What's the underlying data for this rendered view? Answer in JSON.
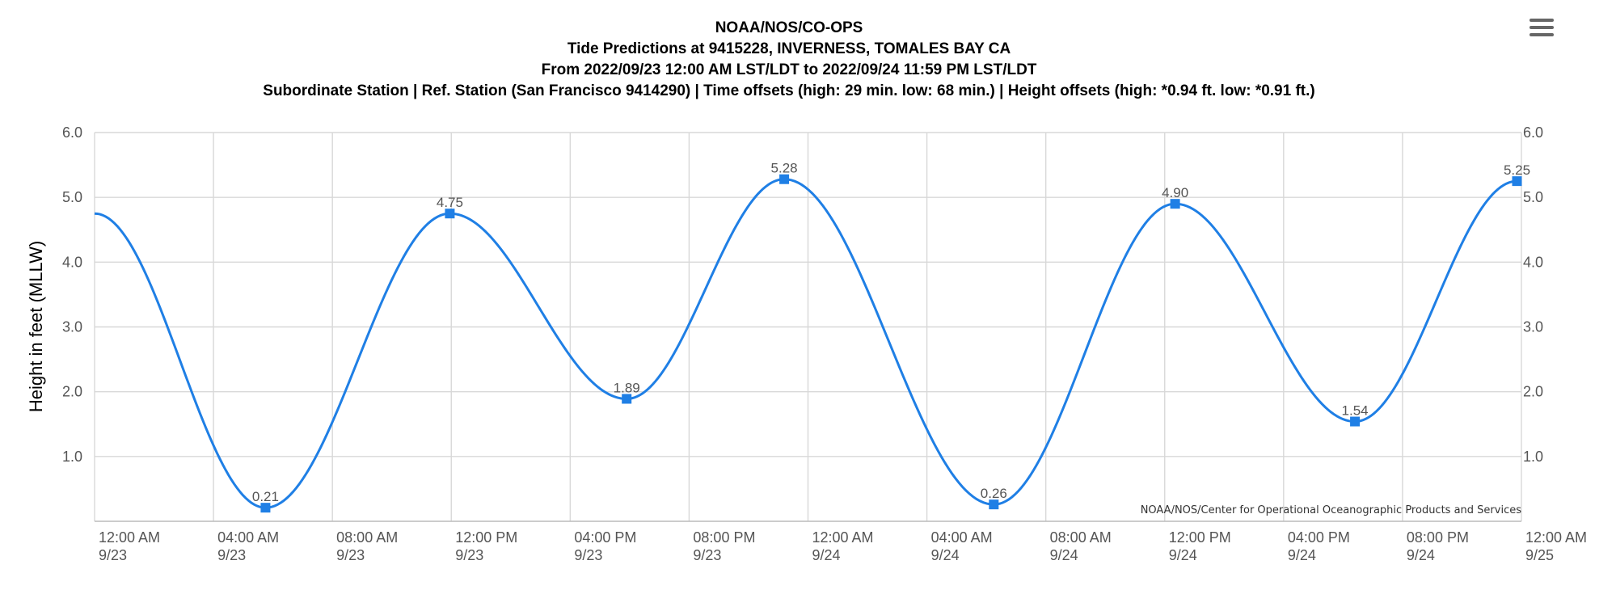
{
  "chart_data": {
    "type": "line",
    "title": [
      "NOAA/NOS/CO-OPS",
      "Tide Predictions at 9415228, INVERNESS, TOMALES BAY CA",
      "From 2022/09/23 12:00 AM LST/LDT to 2022/09/24 11:59 PM LST/LDT",
      "Subordinate Station | Ref. Station (San Francisco 9414290) | Time offsets (high: 29 min. low: 68 min.) | Height offsets (high: *0.94 ft. low: *0.91 ft.)"
    ],
    "ylabel": "Height in feet (MLLW)",
    "xlabel": "",
    "credit": "NOAA/NOS/Center for Operational Oceanographic Products and Services",
    "ylim": [
      0,
      6
    ],
    "xlim_hours": [
      0,
      48
    ],
    "y_ticks": [
      "6.0",
      "5.0",
      "4.0",
      "3.0",
      "2.0",
      "1.0"
    ],
    "y_tick_values": [
      6,
      5,
      4,
      3,
      2,
      1
    ],
    "x_ticks": [
      {
        "hours": 0,
        "time": "12:00 AM",
        "date": "9/23"
      },
      {
        "hours": 4,
        "time": "04:00 AM",
        "date": "9/23"
      },
      {
        "hours": 8,
        "time": "08:00 AM",
        "date": "9/23"
      },
      {
        "hours": 12,
        "time": "12:00 PM",
        "date": "9/23"
      },
      {
        "hours": 16,
        "time": "04:00 PM",
        "date": "9/23"
      },
      {
        "hours": 20,
        "time": "08:00 PM",
        "date": "9/23"
      },
      {
        "hours": 24,
        "time": "12:00 AM",
        "date": "9/24"
      },
      {
        "hours": 28,
        "time": "04:00 AM",
        "date": "9/24"
      },
      {
        "hours": 32,
        "time": "08:00 AM",
        "date": "9/24"
      },
      {
        "hours": 36,
        "time": "12:00 PM",
        "date": "9/24"
      },
      {
        "hours": 40,
        "time": "04:00 PM",
        "date": "9/24"
      },
      {
        "hours": 44,
        "time": "08:00 PM",
        "date": "9/24"
      },
      {
        "hours": 48,
        "time": "12:00 AM",
        "date": "9/25"
      }
    ],
    "start_value": 4.75,
    "series": [
      {
        "color": "#1f7fe5",
        "points": [
          {
            "hours": 5.75,
            "value": 0.21,
            "label": "0.21"
          },
          {
            "hours": 11.95,
            "value": 4.75,
            "label": "4.75"
          },
          {
            "hours": 17.9,
            "value": 1.89,
            "label": "1.89"
          },
          {
            "hours": 23.2,
            "value": 5.28,
            "label": "5.28"
          },
          {
            "hours": 30.25,
            "value": 0.26,
            "label": "0.26"
          },
          {
            "hours": 36.35,
            "value": 4.9,
            "label": "4.90"
          },
          {
            "hours": 42.4,
            "value": 1.54,
            "label": "1.54"
          },
          {
            "hours": 47.85,
            "value": 5.25,
            "label": "5.25"
          }
        ]
      }
    ],
    "grid": true,
    "legend": false
  },
  "menu_icon": "hamburger-menu-icon"
}
